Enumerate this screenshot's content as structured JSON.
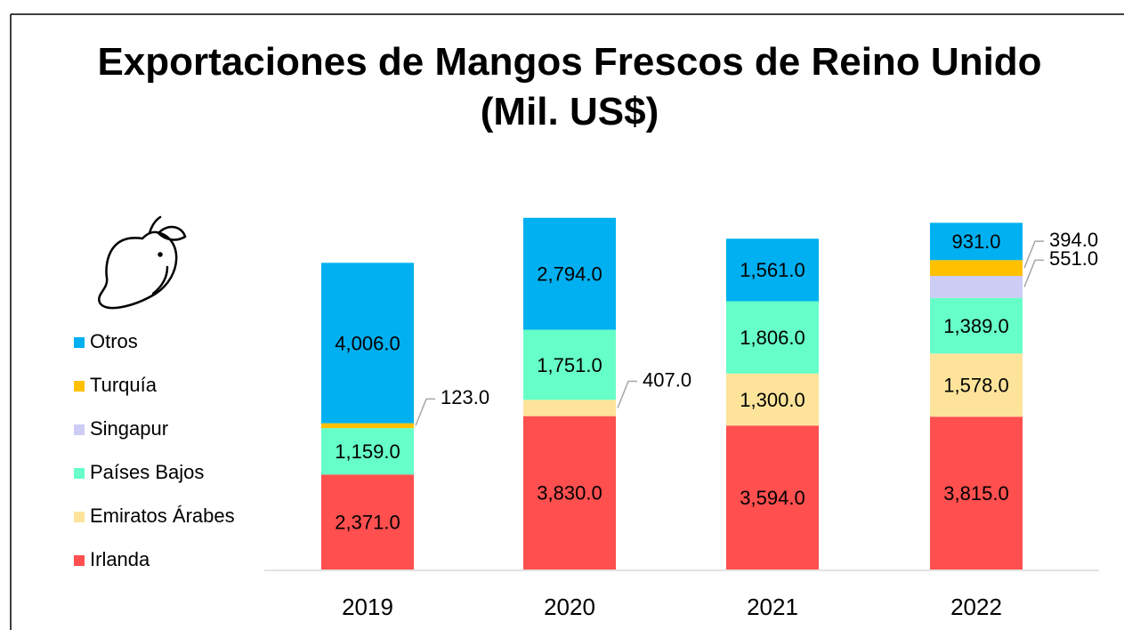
{
  "chart_data": {
    "type": "stacked_bar",
    "title": "Exportaciones de Mangos Frescos de Reino Unido (Mil. US$)",
    "categories": [
      "2019",
      "2020",
      "2021",
      "2022"
    ],
    "series": [
      {
        "name": "Irlanda",
        "color": "#ff4f4f",
        "values": [
          2371,
          3830,
          3594,
          3815
        ],
        "value_labels": [
          "2,371.0",
          "3,830.0",
          "3,594.0",
          "3,815.0"
        ]
      },
      {
        "name": "Emiratos Árabes",
        "color": "#fde49a",
        "values": [
          null,
          407,
          1300,
          1578
        ],
        "value_labels": [
          null,
          "407.0",
          "1,300.0",
          "1,578.0"
        ]
      },
      {
        "name": "Países Bajos",
        "color": "#66ffc8",
        "values": [
          1159,
          1751,
          1806,
          1389
        ],
        "value_labels": [
          "1,159.0",
          "1,751.0",
          "1,806.0",
          "1,389.0"
        ]
      },
      {
        "name": "Singapur",
        "color": "#ccccf5",
        "values": [
          null,
          null,
          null,
          551
        ],
        "value_labels": [
          null,
          null,
          null,
          "551.0"
        ]
      },
      {
        "name": "Turquía",
        "color": "#ffc000",
        "values": [
          123,
          null,
          null,
          394
        ],
        "value_labels": [
          "123.0",
          null,
          null,
          "394.0"
        ]
      },
      {
        "name": "Otros",
        "color": "#00b0f0",
        "values": [
          4006,
          2794,
          1561,
          931
        ],
        "value_labels": [
          "4,006.0",
          "2,794.0",
          "1,561.0",
          "931.0"
        ]
      }
    ]
  }
}
